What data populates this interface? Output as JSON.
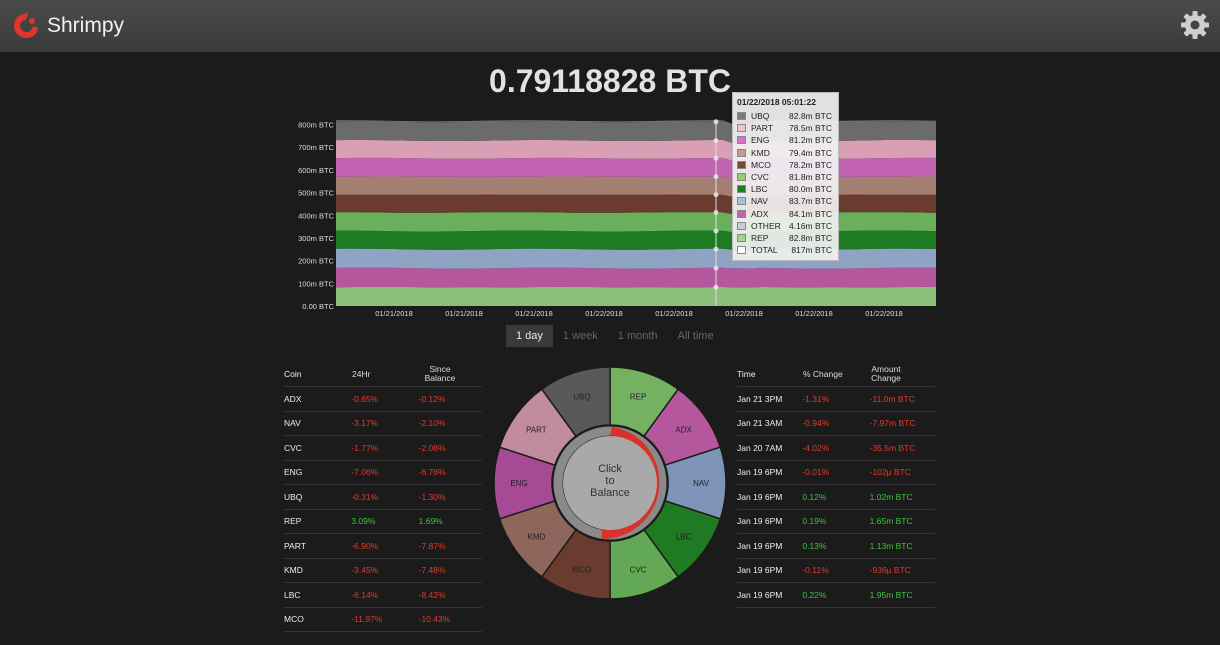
{
  "app": {
    "title": "Shrimpy",
    "logo_icon": "shrimpy-logo-icon",
    "settings_icon": "gear-icon"
  },
  "balance": "0.79118828 BTC",
  "chart_data": {
    "type": "area",
    "stacked": true,
    "y_tick_labels": [
      "0.00 BTC",
      "100m BTC",
      "200m BTC",
      "300m BTC",
      "400m BTC",
      "500m BTC",
      "600m BTC",
      "700m BTC",
      "800m BTC"
    ],
    "ylim": [
      0,
      820
    ],
    "x_tick_labels": [
      "01/21/2018",
      "01/21/2018",
      "01/21/2018",
      "01/22/2018",
      "01/22/2018",
      "01/22/2018",
      "01/22/2018",
      "01/22/2018"
    ],
    "legend_placement": "tooltip",
    "series": [
      {
        "name": "REP",
        "color": "#8ac07a",
        "value": 82.8
      },
      {
        "name": "ADX",
        "color": "#b4579c",
        "value": 84.1
      },
      {
        "name": "NAV",
        "color": "#8fa3c4",
        "value": 83.7
      },
      {
        "name": "LBC",
        "color": "#1f7a24",
        "value": 80.0
      },
      {
        "name": "CVC",
        "color": "#6ab05a",
        "value": 81.8
      },
      {
        "name": "MCO",
        "color": "#6a3c30",
        "value": 78.2
      },
      {
        "name": "KMD",
        "color": "#a57e72",
        "value": 79.4
      },
      {
        "name": "ENG",
        "color": "#c163b0",
        "value": 81.2
      },
      {
        "name": "PART",
        "color": "#d9a0b5",
        "value": 78.5
      },
      {
        "name": "UBQ",
        "color": "#6b6b6b",
        "value": 82.8
      }
    ]
  },
  "tooltip": {
    "time": "01/22/2018 05:01:22",
    "rows": [
      {
        "name": "UBQ",
        "value": "82.8m BTC",
        "color": "#7a7a7a"
      },
      {
        "name": "PART",
        "value": "78.5m BTC",
        "color": "#f2c4d2"
      },
      {
        "name": "ENG",
        "value": "81.2m BTC",
        "color": "#d577c2"
      },
      {
        "name": "KMD",
        "value": "79.4m BTC",
        "color": "#c99a8c"
      },
      {
        "name": "MCO",
        "value": "78.2m BTC",
        "color": "#7a4638"
      },
      {
        "name": "CVC",
        "value": "81.8m BTC",
        "color": "#8fd078"
      },
      {
        "name": "LBC",
        "value": "80.0m BTC",
        "color": "#1f7a24"
      },
      {
        "name": "NAV",
        "value": "83.7m BTC",
        "color": "#a9bfe0"
      },
      {
        "name": "ADX",
        "value": "84.1m BTC",
        "color": "#c463ad"
      },
      {
        "name": "OTHER",
        "value": "4.16m BTC",
        "color": "#cccccc"
      },
      {
        "name": "REP",
        "value": "82.8m BTC",
        "color": "#9ed48a"
      },
      {
        "name": "TOTAL",
        "value": "817m BTC",
        "color": "#ffffff"
      }
    ]
  },
  "range_tabs": [
    {
      "label": "1 day",
      "active": true
    },
    {
      "label": "1 week",
      "active": false
    },
    {
      "label": "1 month",
      "active": false
    },
    {
      "label": "All time",
      "active": false
    }
  ],
  "coin_table": {
    "headers": {
      "coin": "Coin",
      "h24": "24Hr",
      "since_a": "Since",
      "since_b": "Balance"
    },
    "rows": [
      {
        "coin": "ADX",
        "h24": "-0.65%",
        "since": "-0.12%"
      },
      {
        "coin": "NAV",
        "h24": "-3.17%",
        "since": "-2.10%"
      },
      {
        "coin": "CVC",
        "h24": "-1.77%",
        "since": "-2.08%"
      },
      {
        "coin": "ENG",
        "h24": "-7.06%",
        "since": "-6.76%"
      },
      {
        "coin": "UBQ",
        "h24": "-0.31%",
        "since": "-1.30%"
      },
      {
        "coin": "REP",
        "h24": "3.09%",
        "since": "1.69%"
      },
      {
        "coin": "PART",
        "h24": "-6.90%",
        "since": "-7.87%"
      },
      {
        "coin": "KMD",
        "h24": "-3.45%",
        "since": "-7.48%"
      },
      {
        "coin": "LBC",
        "h24": "-6.14%",
        "since": "-8.42%"
      },
      {
        "coin": "MCO",
        "h24": "-11.97%",
        "since": "-10.43%"
      }
    ]
  },
  "donut": {
    "center_line1": "Click",
    "center_line2": "to",
    "center_line3": "Balance",
    "slices": [
      {
        "name": "REP",
        "color": "#74b262"
      },
      {
        "name": "ADX",
        "color": "#b4579c"
      },
      {
        "name": "NAV",
        "color": "#7d94b8"
      },
      {
        "name": "LBC",
        "color": "#1f7a24"
      },
      {
        "name": "CVC",
        "color": "#62a855"
      },
      {
        "name": "MCO",
        "color": "#6a3c30"
      },
      {
        "name": "KMD",
        "color": "#8f665c"
      },
      {
        "name": "ENG",
        "color": "#a64a95"
      },
      {
        "name": "PART",
        "color": "#c18c9e"
      },
      {
        "name": "UBQ",
        "color": "#595959"
      }
    ]
  },
  "history_table": {
    "headers": {
      "time": "Time",
      "pct": "% Change",
      "amt_a": "Amount",
      "amt_b": "Change"
    },
    "rows": [
      {
        "time": "Jan 21 3PM",
        "pct": "-1.31%",
        "amount": "-11.0m BTC",
        "positive": false
      },
      {
        "time": "Jan 21 3AM",
        "pct": "-0.94%",
        "amount": "-7.97m BTC",
        "positive": false
      },
      {
        "time": "Jan 20 7AM",
        "pct": "-4.02%",
        "amount": "-35.5m BTC",
        "positive": false
      },
      {
        "time": "Jan 19 6PM",
        "pct": "-0.01%",
        "amount": "-102µ BTC",
        "positive": false
      },
      {
        "time": "Jan 19 6PM",
        "pct": "0.12%",
        "amount": "1.02m BTC",
        "positive": true
      },
      {
        "time": "Jan 19 6PM",
        "pct": "0.19%",
        "amount": "1.65m BTC",
        "positive": true
      },
      {
        "time": "Jan 19 6PM",
        "pct": "0.13%",
        "amount": "1.13m BTC",
        "positive": true
      },
      {
        "time": "Jan 19 6PM",
        "pct": "-0.11%",
        "amount": "-936µ BTC",
        "positive": false
      },
      {
        "time": "Jan 19 6PM",
        "pct": "0.22%",
        "amount": "1.95m BTC",
        "positive": true
      }
    ]
  }
}
